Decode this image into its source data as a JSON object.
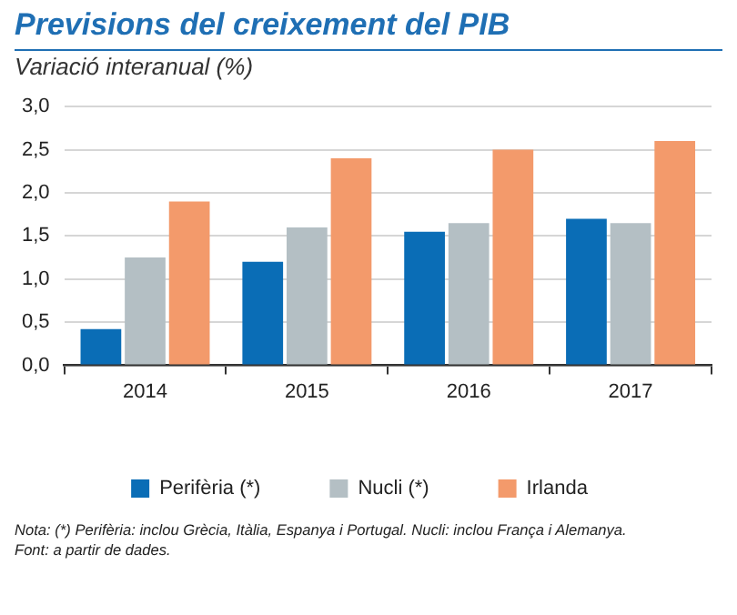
{
  "chart_data": {
    "type": "bar",
    "title": "Previsions del creixement del PIB",
    "subtitle": "Variació interanual (%)",
    "categories": [
      "2014",
      "2015",
      "2016",
      "2017"
    ],
    "series": [
      {
        "name": "Perifèria (*)",
        "color": "#0a6db6",
        "values": [
          0.42,
          1.2,
          1.55,
          1.7
        ]
      },
      {
        "name": "Nucli (*)",
        "color": "#b4bfc4",
        "values": [
          1.25,
          1.6,
          1.65,
          1.65
        ]
      },
      {
        "name": "Irlanda",
        "color": "#f39a6b",
        "values": [
          1.9,
          2.4,
          2.5,
          2.6
        ]
      }
    ],
    "ylim": [
      0,
      3
    ],
    "yticks": [
      {
        "value": 0,
        "label": "0,0"
      },
      {
        "value": 0.5,
        "label": "0,5"
      },
      {
        "value": 1,
        "label": "1,0"
      },
      {
        "value": 1.5,
        "label": "1,5"
      },
      {
        "value": 2,
        "label": "2,0"
      },
      {
        "value": 2.5,
        "label": "2,5"
      },
      {
        "value": 3,
        "label": "3,0"
      }
    ],
    "grid": "y",
    "legend": "bottom",
    "annotations": [
      "Nota: (*) Perifèria: inclou Grècia, Itàlia, Espanya i Portugal. Nucli: inclou França i Alemanya.",
      "Font: a partir de dades."
    ]
  }
}
